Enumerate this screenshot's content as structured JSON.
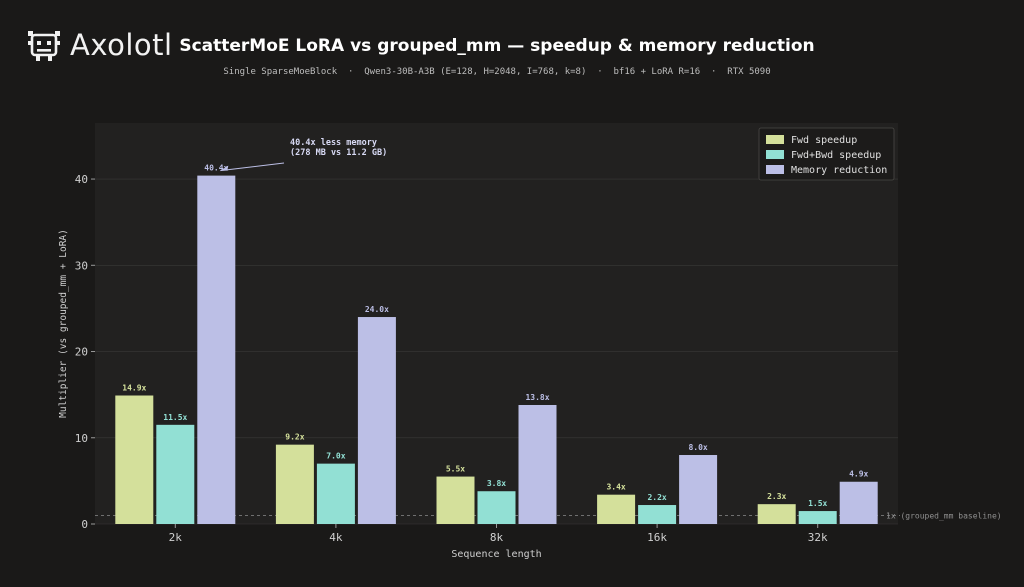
{
  "logo": {
    "text": "Axolotl"
  },
  "header": {
    "title": "ScatterMoE LoRA vs grouped_mm — speedup & memory reduction",
    "subtitle": "Single SparseMoeBlock  ·  Qwen3-30B-A3B (E=128, H=2048, I=768, k=8)  ·  bf16 + LoRA R=16  ·  RTX 5090"
  },
  "colors": {
    "background": "#1a1918",
    "plot_bg": "#222120",
    "fwd": "#d4e09b",
    "fwdbwd": "#92e0d4",
    "memory": "#bcbfe6"
  },
  "chart_data": {
    "type": "bar",
    "categories": [
      "2k",
      "4k",
      "8k",
      "16k",
      "32k"
    ],
    "series": [
      {
        "name": "Fwd speedup",
        "values": [
          14.9,
          9.2,
          5.5,
          3.4,
          2.3
        ],
        "labels": [
          "14.9x",
          "9.2x",
          "5.5x",
          "3.4x",
          "2.3x"
        ]
      },
      {
        "name": "Fwd+Bwd speedup",
        "values": [
          11.5,
          7.0,
          3.8,
          2.2,
          1.5
        ],
        "labels": [
          "11.5x",
          "7.0x",
          "3.8x",
          "2.2x",
          "1.5x"
        ]
      },
      {
        "name": "Memory reduction",
        "values": [
          40.4,
          24.0,
          13.8,
          8.0,
          4.9
        ],
        "labels": [
          "40.4x",
          "24.0x",
          "13.8x",
          "8.0x",
          "4.9x"
        ]
      }
    ],
    "xlabel": "Sequence length",
    "ylabel": "Multiplier (vs grouped_mm + LoRA)",
    "ylim": [
      0,
      46.5
    ],
    "yticks": [
      0,
      10,
      20,
      30,
      40
    ],
    "grid": true,
    "legend": "top-right",
    "baseline": {
      "value": 1,
      "label": "1x (grouped_mm baseline)"
    },
    "annotation": {
      "lines": [
        "40.4x less memory",
        "(278 MB vs 11.2 GB)"
      ],
      "category": "2k",
      "series": "Memory reduction",
      "value": 40.4
    }
  }
}
